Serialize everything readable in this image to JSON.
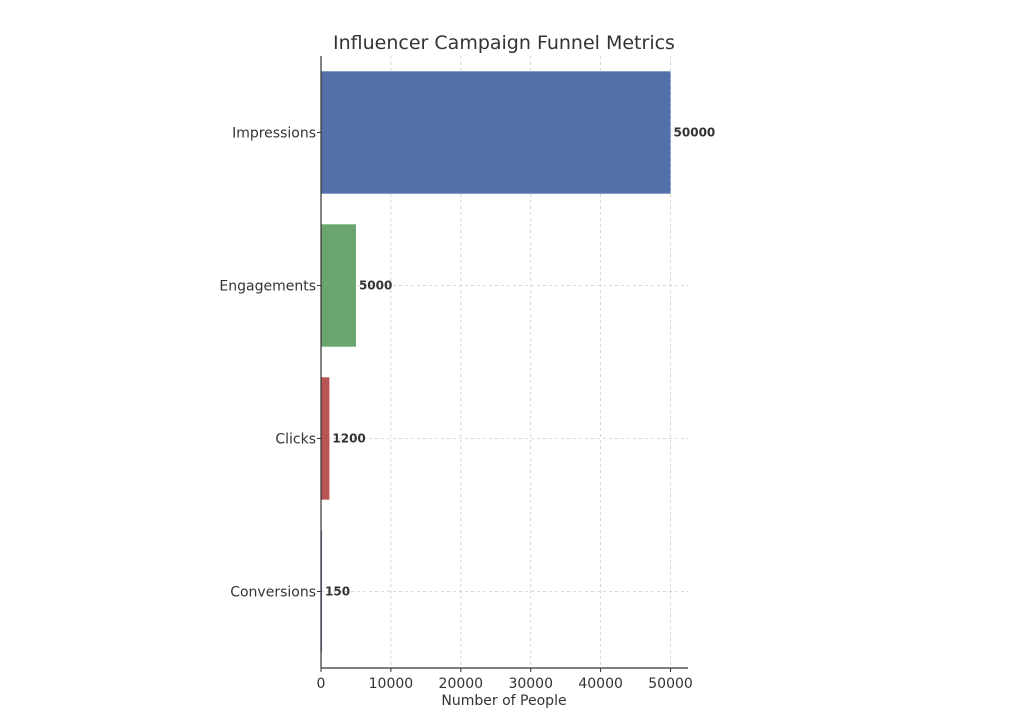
{
  "chart_data": {
    "type": "bar",
    "orientation": "horizontal",
    "title": "Influencer Campaign Funnel Metrics",
    "xlabel": "Number of People",
    "ylabel": "",
    "categories": [
      "Impressions",
      "Engagements",
      "Clicks",
      "Conversions"
    ],
    "values": [
      50000,
      5000,
      1200,
      150
    ],
    "data_labels": [
      "50000",
      "5000",
      "1200",
      "150"
    ],
    "colors": [
      "#5470AA",
      "#6AA56F",
      "#B85454",
      "#8C6BB1"
    ],
    "xlim": [
      0,
      52500
    ],
    "xticks": [
      0,
      10000,
      20000,
      30000,
      40000,
      50000
    ],
    "xtick_labels": [
      "0",
      "10000",
      "20000",
      "30000",
      "40000",
      "50000"
    ],
    "grid": true
  }
}
